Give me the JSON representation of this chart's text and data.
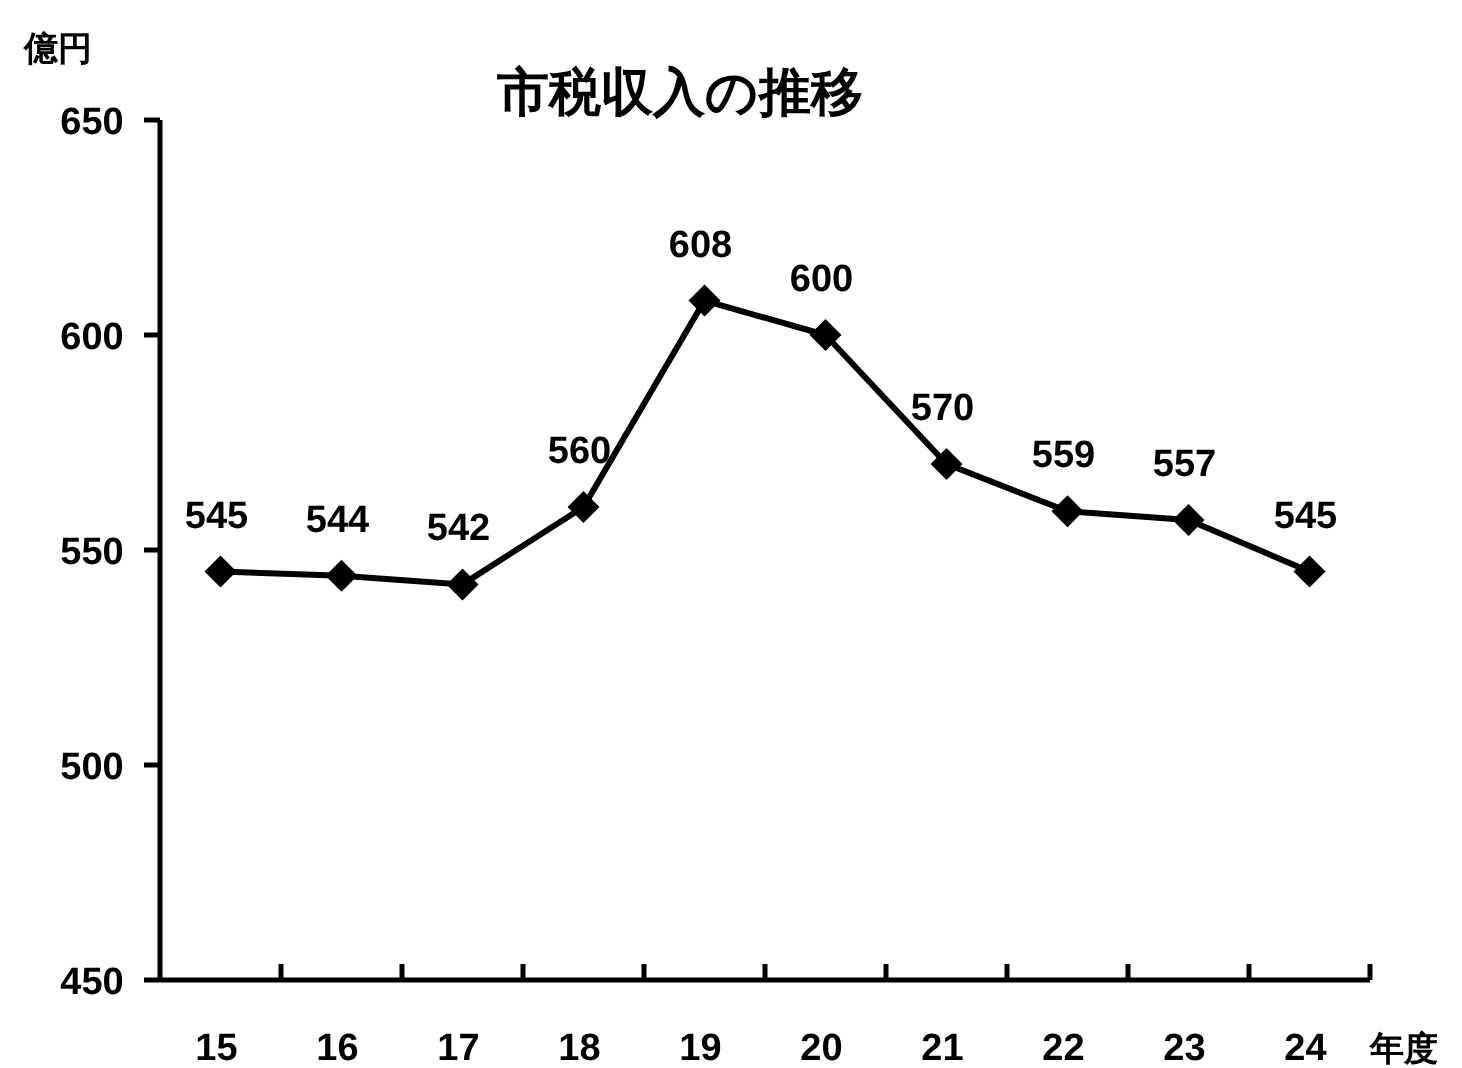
{
  "chart_data": {
    "type": "line",
    "title": "市税収入の推移",
    "ylabel": "億円",
    "xlabel": "年度",
    "categories": [
      "15",
      "16",
      "17",
      "18",
      "19",
      "20",
      "21",
      "22",
      "23",
      "24"
    ],
    "values": [
      545,
      544,
      542,
      560,
      608,
      600,
      570,
      559,
      557,
      545
    ],
    "color": "#000000",
    "marker": "diamond",
    "data_labels": true,
    "ylim": [
      450,
      650
    ],
    "yticks": [
      450,
      500,
      550,
      600,
      650
    ]
  }
}
